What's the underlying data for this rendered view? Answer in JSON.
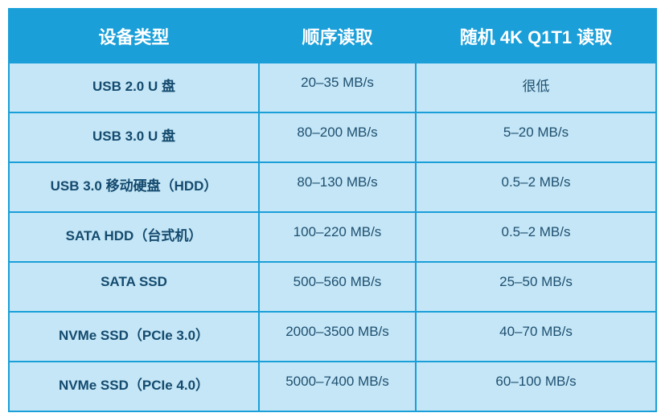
{
  "table": {
    "header": [
      "设备类型",
      "顺序读取",
      "随机 4K Q1T1 读取"
    ],
    "rows": [
      [
        "USB 2.0 U 盘",
        "20–35 MB/s",
        "很低"
      ],
      [
        "USB 3.0 U 盘",
        "80–200 MB/s",
        "5–20 MB/s"
      ],
      [
        "USB 3.0 移动硬盘（HDD）",
        "80–130 MB/s",
        "0.5–2 MB/s"
      ],
      [
        "SATA HDD（台式机）",
        "100–220 MB/s",
        "0.5–2 MB/s"
      ],
      [
        "SATA SSD",
        "500–560 MB/s",
        "25–50 MB/s"
      ],
      [
        "NVMe SSD（PCIe 3.0）",
        "2000–3500 MB/s",
        "40–70 MB/s"
      ],
      [
        "NVMe SSD（PCIe 4.0）",
        "5000–7400 MB/s",
        "60–100 MB/s"
      ]
    ]
  }
}
